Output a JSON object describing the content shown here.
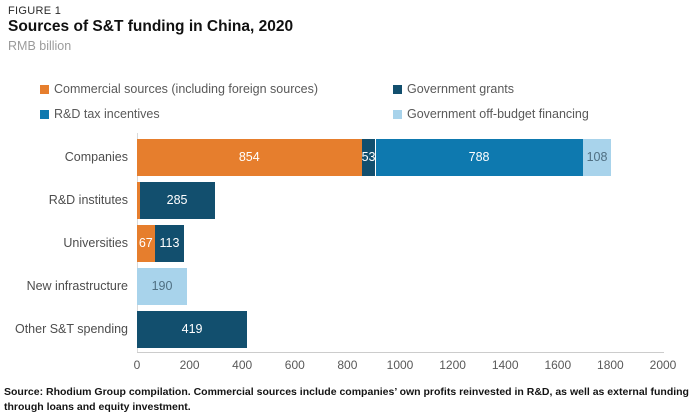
{
  "header": {
    "kicker": "FIGURE 1",
    "title": "Sources of S&T funding in China, 2020",
    "subtitle": "RMB billion"
  },
  "footer": {
    "source": "Source: Rhodium Group compilation. Commercial sources include companies’ own profits reinvested in R&D, as well as external funding through loans and equity investment."
  },
  "colors": {
    "commercial_orange": "#E67E2D",
    "government_grants_navy": "#124F6E",
    "rd_tax_incentives_blue": "#0E79AF",
    "off_budget_light_blue": "#A8D3EB",
    "axis_line": "#cccccc",
    "text_gray": "#595959"
  },
  "chart_data": {
    "type": "bar",
    "orientation": "horizontal",
    "stacked": true,
    "title": "Sources of S&T funding in China, 2020",
    "unit_label": "RMB billion",
    "xlabel": "",
    "ylabel": "",
    "xlim": [
      0,
      2000
    ],
    "xticks": [
      0,
      200,
      400,
      600,
      800,
      1000,
      1200,
      1400,
      1600,
      1800,
      2000
    ],
    "grid": false,
    "legend_position": "top",
    "categories": [
      "Companies",
      "R&D institutes",
      "Universities",
      "New infrastructure",
      "Other S&T spending"
    ],
    "series": [
      {
        "name": "Commercial sources (including foreign sources)",
        "color": "#E67E2D",
        "label_color": "#ffffff",
        "values": [
          854,
          10,
          67,
          0,
          0
        ]
      },
      {
        "name": "Government grants",
        "color": "#124F6E",
        "label_color": "#ffffff",
        "values": [
          53,
          285,
          113,
          0,
          419
        ]
      },
      {
        "name": "R&D tax incentives",
        "color": "#0E79AF",
        "label_color": "#ffffff",
        "values": [
          788,
          0,
          0,
          0,
          0
        ]
      },
      {
        "name": "Government off-budget financing",
        "color": "#A8D3EB",
        "label_color": "#4F6F82",
        "values": [
          108,
          0,
          0,
          190,
          0
        ]
      }
    ],
    "data_labels_shown": [
      "854",
      "53",
      "788",
      "108",
      "285",
      "67",
      "113",
      "190",
      "419"
    ]
  }
}
